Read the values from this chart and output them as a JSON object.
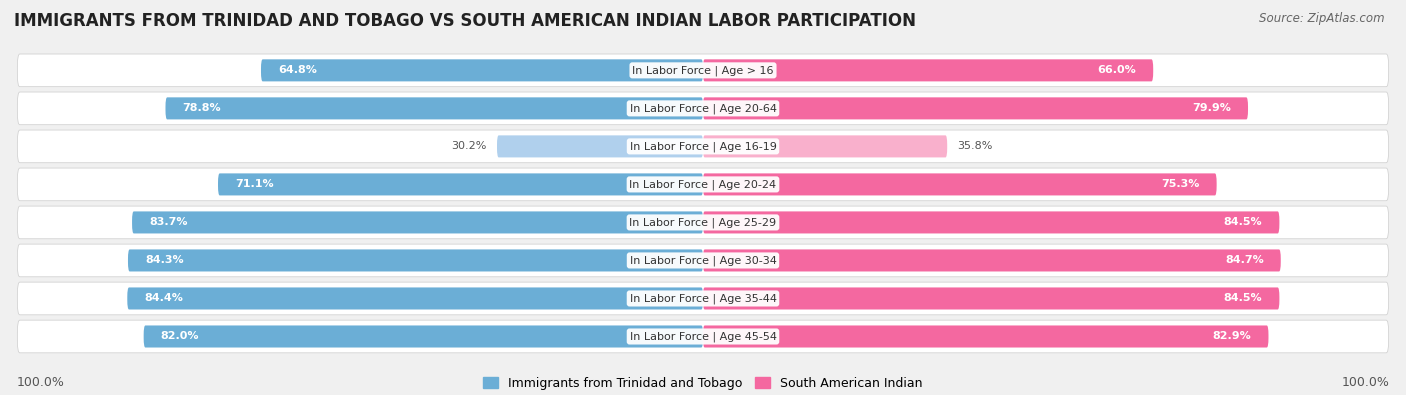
{
  "title": "IMMIGRANTS FROM TRINIDAD AND TOBAGO VS SOUTH AMERICAN INDIAN LABOR PARTICIPATION",
  "source": "Source: ZipAtlas.com",
  "categories": [
    "In Labor Force | Age > 16",
    "In Labor Force | Age 20-64",
    "In Labor Force | Age 16-19",
    "In Labor Force | Age 20-24",
    "In Labor Force | Age 25-29",
    "In Labor Force | Age 30-34",
    "In Labor Force | Age 35-44",
    "In Labor Force | Age 45-54"
  ],
  "trinidad_values": [
    64.8,
    78.8,
    30.2,
    71.1,
    83.7,
    84.3,
    84.4,
    82.0
  ],
  "south_american_values": [
    66.0,
    79.9,
    35.8,
    75.3,
    84.5,
    84.7,
    84.5,
    82.9
  ],
  "trinidad_color": "#6BAED6",
  "south_american_color": "#F468A0",
  "trinidad_color_light": "#B0D0ED",
  "south_american_color_light": "#F9B0CC",
  "label_trinidad": "Immigrants from Trinidad and Tobago",
  "label_south_american": "South American Indian",
  "max_val": 100.0,
  "bg_color": "#f0f0f0",
  "row_bg_color": "#ffffff",
  "title_fontsize": 12,
  "label_fontsize": 8,
  "value_fontsize": 8,
  "footer_fontsize": 9
}
